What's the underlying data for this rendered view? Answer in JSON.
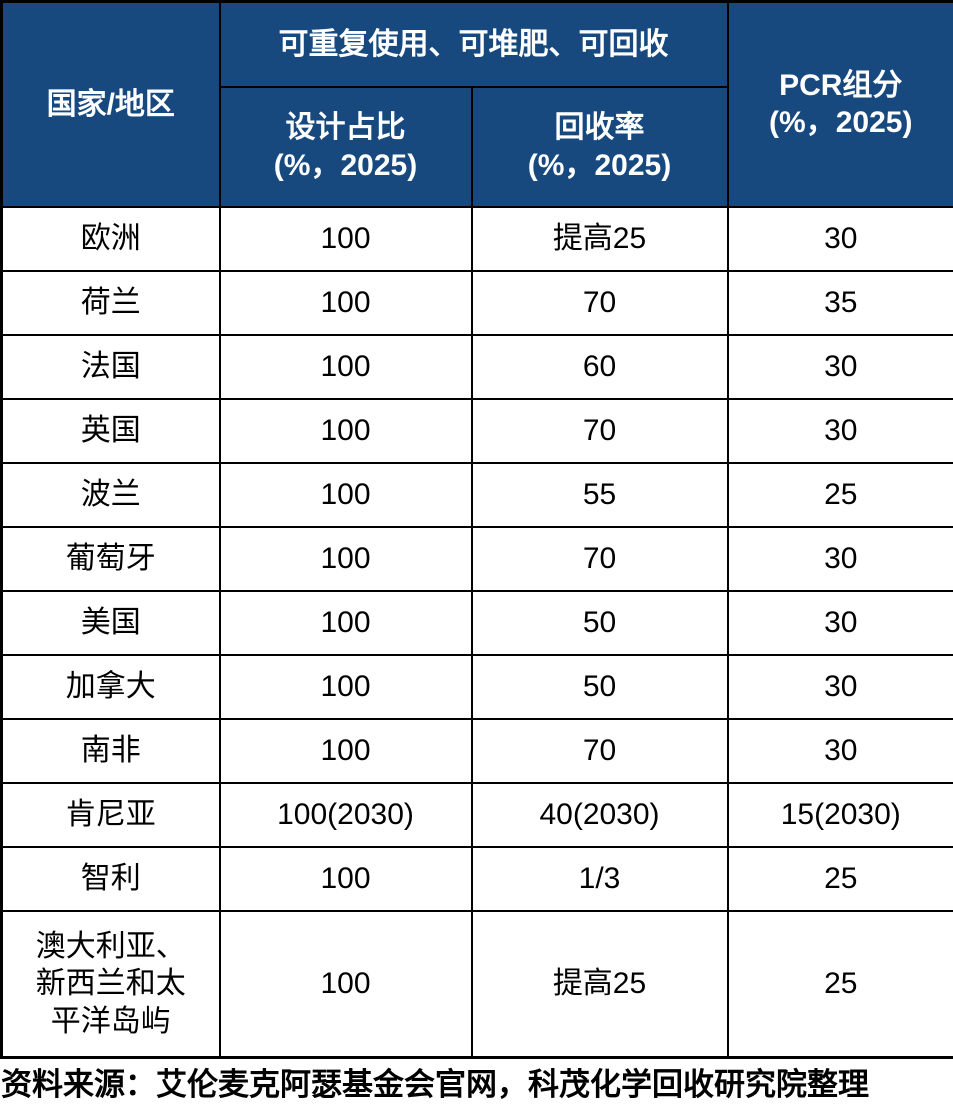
{
  "colors": {
    "header_bg": "#17497F",
    "header_text": "#FFFFFF",
    "body_bg": "#FFFFFF",
    "body_text": "#000000",
    "border": "#000000"
  },
  "header": {
    "country": "国家/地区",
    "group": "可重复使用、可堆肥、可回收",
    "design_title": "设计占比",
    "design_unit": "(%，2025)",
    "recycle_title": "回收率",
    "recycle_unit": "(%，2025)",
    "pcr_title": "PCR组分",
    "pcr_unit": "(%，2025)"
  },
  "rows": [
    {
      "region": "欧洲",
      "design": "100",
      "recycle": "提高25",
      "pcr": "30"
    },
    {
      "region": "荷兰",
      "design": "100",
      "recycle": "70",
      "pcr": "35"
    },
    {
      "region": "法国",
      "design": "100",
      "recycle": "60",
      "pcr": "30"
    },
    {
      "region": "英国",
      "design": "100",
      "recycle": "70",
      "pcr": "30"
    },
    {
      "region": "波兰",
      "design": "100",
      "recycle": "55",
      "pcr": "25"
    },
    {
      "region": "葡萄牙",
      "design": "100",
      "recycle": "70",
      "pcr": "30"
    },
    {
      "region": "美国",
      "design": "100",
      "recycle": "50",
      "pcr": "30"
    },
    {
      "region": "加拿大",
      "design": "100",
      "recycle": "50",
      "pcr": "30"
    },
    {
      "region": "南非",
      "design": "100",
      "recycle": "70",
      "pcr": "30"
    },
    {
      "region": "肯尼亚",
      "design": "100(2030)",
      "recycle": "40(2030)",
      "pcr": "15(2030)"
    },
    {
      "region": "智利",
      "design": "100",
      "recycle": "1/3",
      "pcr": "25"
    },
    {
      "region": "澳大利亚、\n新西兰和太\n平洋岛屿",
      "design": "100",
      "recycle": "提高25",
      "pcr": "25"
    }
  ],
  "source_note": "资料来源：艾伦麦克阿瑟基金会官网，科茂化学回收研究院整理",
  "chart_data": {
    "type": "table",
    "title": "",
    "column_group": {
      "label": "可重复使用、可堆肥、可回收",
      "columns": [
        "设计占比(%，2025)",
        "回收率(%，2025)"
      ]
    },
    "columns": [
      "国家/地区",
      "设计占比(%，2025)",
      "回收率(%，2025)",
      "PCR组分(%，2025)"
    ],
    "rows": [
      [
        "欧洲",
        "100",
        "提高25",
        "30"
      ],
      [
        "荷兰",
        "100",
        "70",
        "35"
      ],
      [
        "法国",
        "100",
        "60",
        "30"
      ],
      [
        "英国",
        "100",
        "70",
        "30"
      ],
      [
        "波兰",
        "100",
        "55",
        "25"
      ],
      [
        "葡萄牙",
        "100",
        "70",
        "30"
      ],
      [
        "美国",
        "100",
        "50",
        "30"
      ],
      [
        "加拿大",
        "100",
        "50",
        "30"
      ],
      [
        "南非",
        "100",
        "70",
        "30"
      ],
      [
        "肯尼亚",
        "100(2030)",
        "40(2030)",
        "15(2030)"
      ],
      [
        "智利",
        "100",
        "1/3",
        "25"
      ],
      [
        "澳大利亚、新西兰和太平洋岛屿",
        "100",
        "提高25",
        "25"
      ]
    ],
    "source": "资料来源：艾伦麦克阿瑟基金会官网，科茂化学回收研究院整理"
  }
}
